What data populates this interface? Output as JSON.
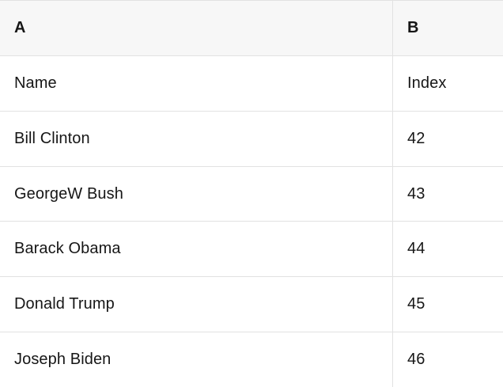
{
  "table": {
    "header": [
      "A",
      "B"
    ],
    "rows": [
      [
        "Name",
        "Index"
      ],
      [
        "Bill Clinton",
        "42"
      ],
      [
        "GeorgeW Bush",
        "43"
      ],
      [
        "Barack Obama",
        "44"
      ],
      [
        "Donald Trump",
        "45"
      ],
      [
        "Joseph Biden",
        "46"
      ]
    ]
  },
  "colors": {
    "header_bg": "#f7f7f7",
    "border": "#e2e2e2",
    "cell_bg": "#ffffff",
    "text": "#161616"
  }
}
